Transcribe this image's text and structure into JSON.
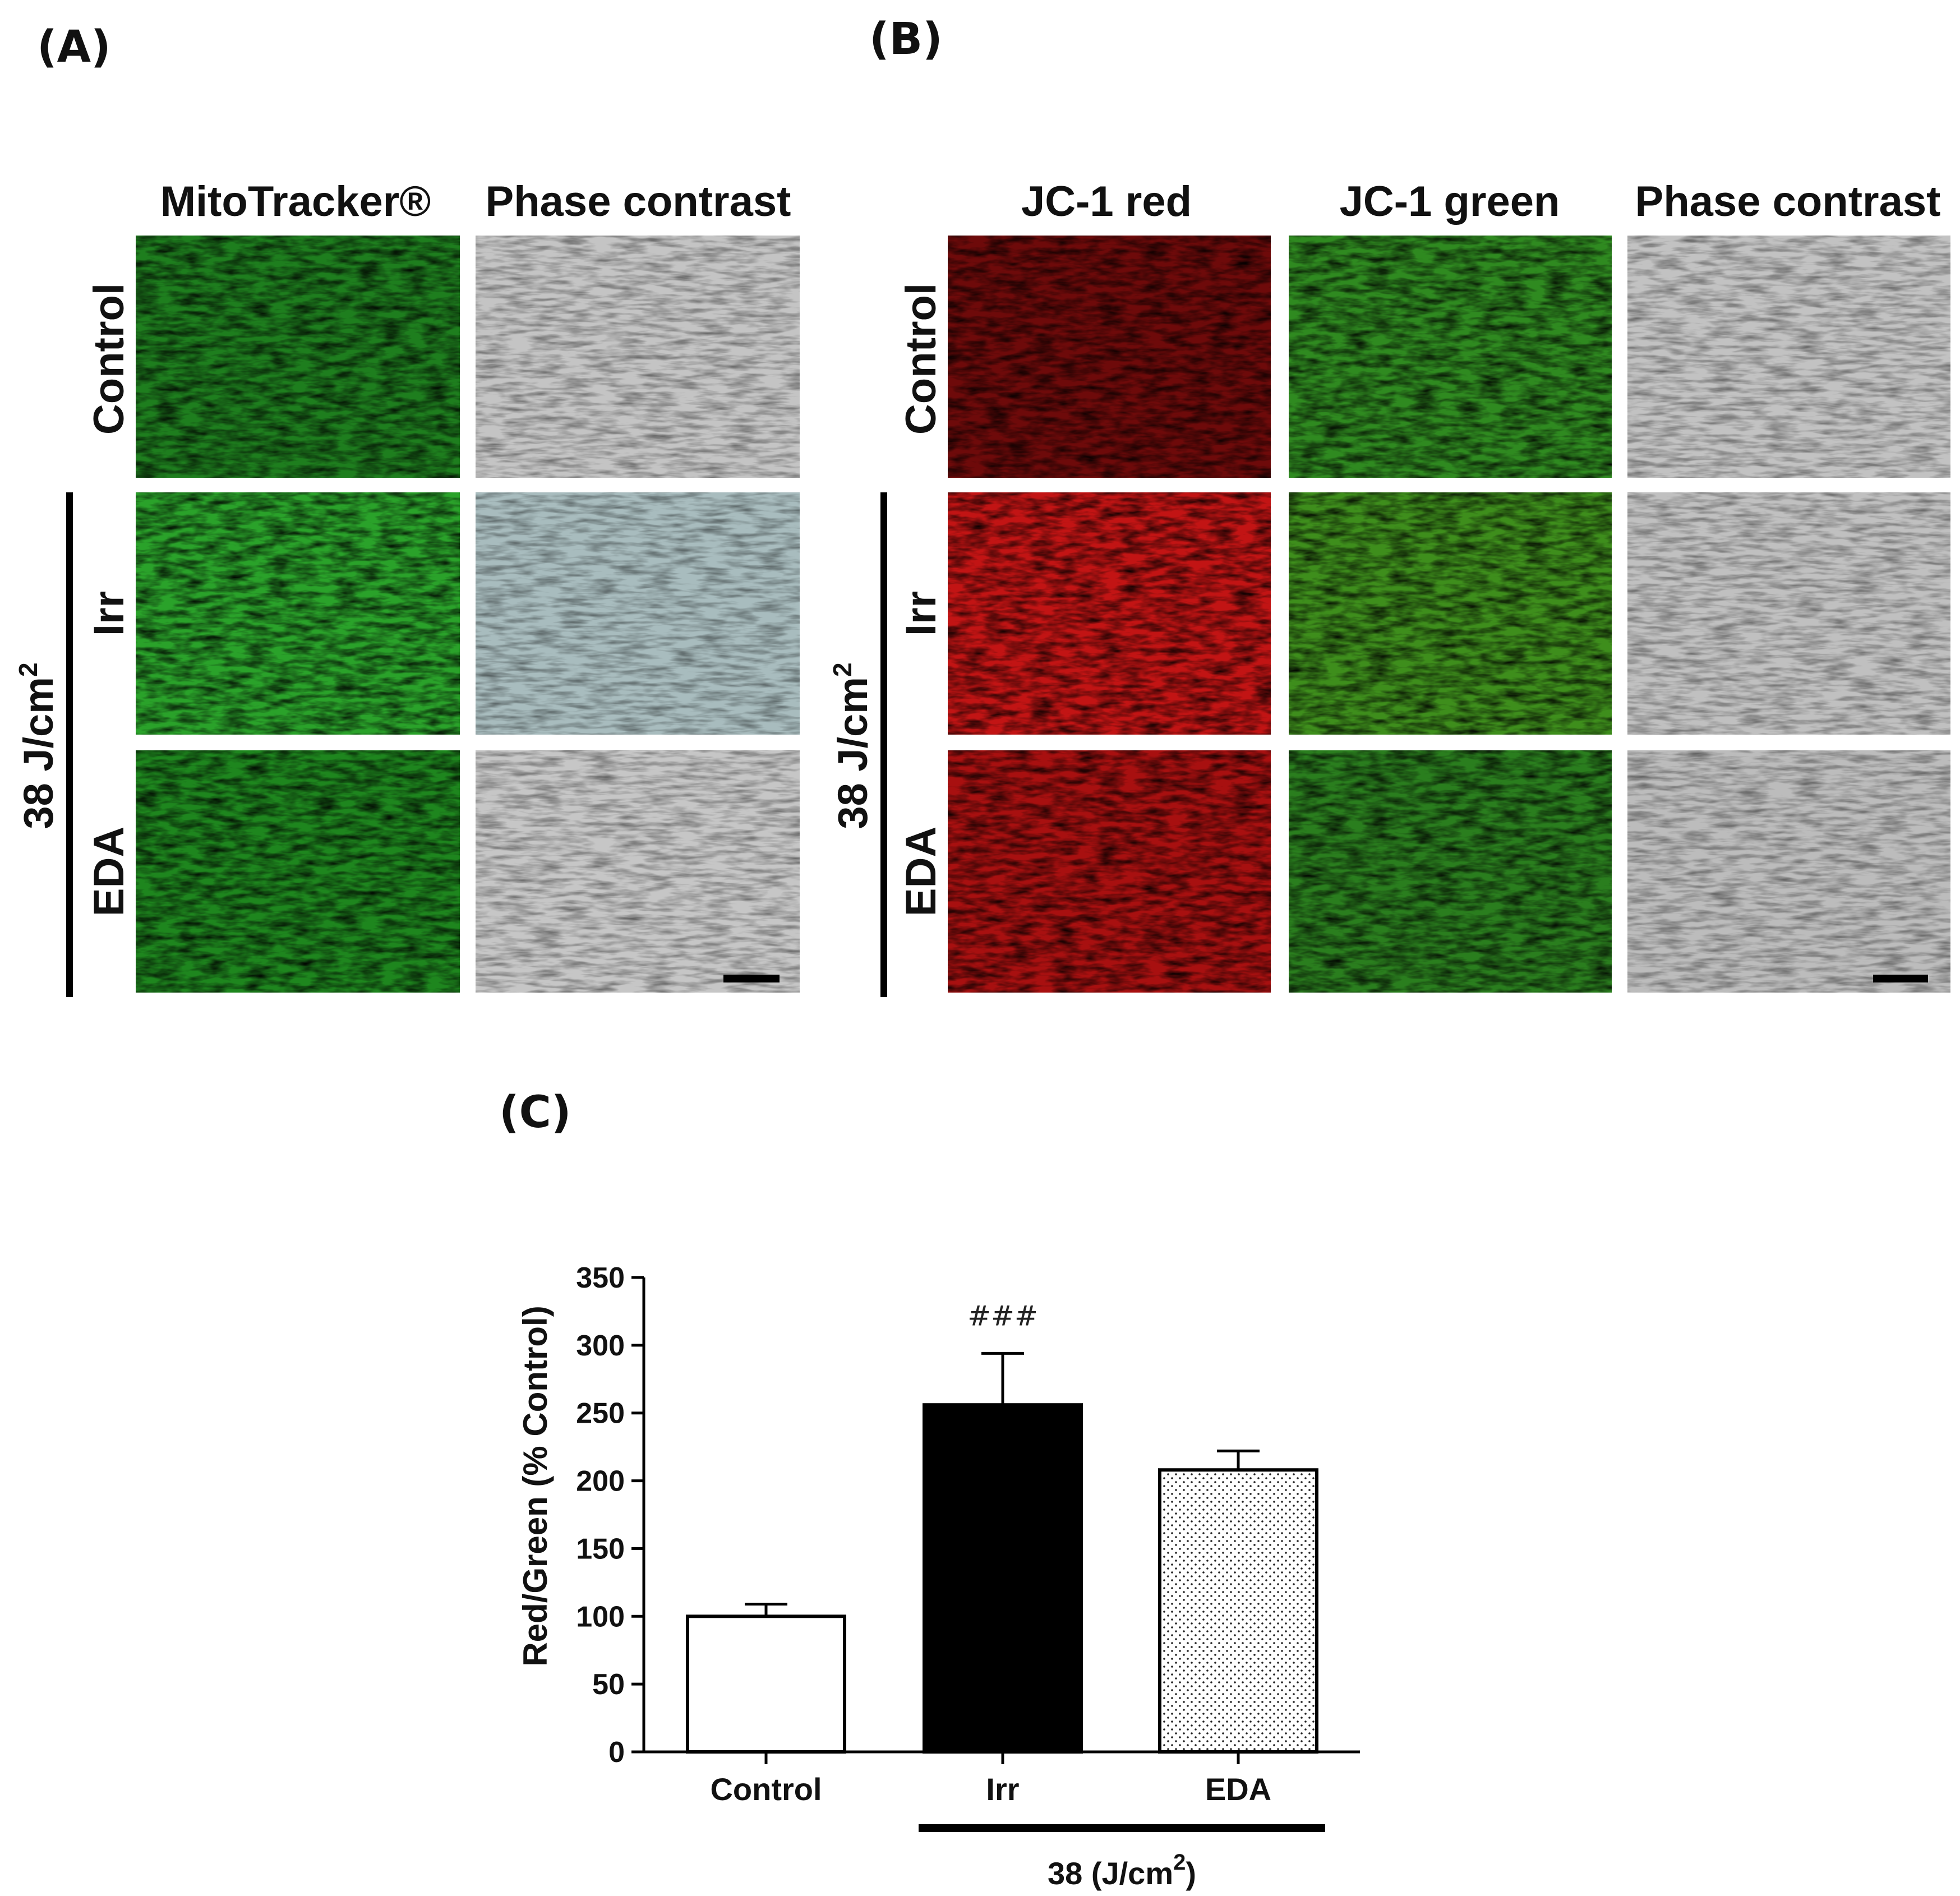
{
  "panels": {
    "a": {
      "label": "(A)"
    },
    "b": {
      "label": "(B)"
    },
    "c": {
      "label": "(C)"
    }
  },
  "panel_a": {
    "columns": [
      "MitoTracker®",
      "Phase contrast"
    ],
    "rows": [
      "Control",
      "Irr",
      "EDA"
    ],
    "dose_label": "38 J/cm",
    "dose_sup": "2"
  },
  "panel_b": {
    "columns": [
      "JC-1 red",
      "JC-1 green",
      "Phase contrast"
    ],
    "rows": [
      "Control",
      "Irr",
      "EDA"
    ],
    "dose_label": "38 J/cm",
    "dose_sup": "2"
  },
  "colors": {
    "mito_green": "#1f8f1f",
    "jc1_red": "#c81414",
    "jc1_green": "#2e8a22",
    "phase_gray": "#b9b9b9",
    "phase_teal": "#a8bcbe",
    "bar_irr": "#000000",
    "bar_control": "#ffffff"
  },
  "chart_data": {
    "type": "bar",
    "categories": [
      "Control",
      "Irr",
      "EDA"
    ],
    "values": [
      100,
      256,
      208
    ],
    "errors": [
      9,
      38,
      14
    ],
    "fills": [
      "white",
      "black",
      "dotted"
    ],
    "annotations": [
      {
        "category": "Irr",
        "text": "###"
      }
    ],
    "ylabel": "Red/Green (% Control)",
    "ylim": [
      0,
      350
    ],
    "yticks": [
      0,
      50,
      100,
      150,
      200,
      250,
      300,
      350
    ],
    "group_label": "38 (J/cm",
    "group_label_sup": "2",
    "group_label_close": ")",
    "group_categories": [
      "Irr",
      "EDA"
    ],
    "grid": false
  }
}
